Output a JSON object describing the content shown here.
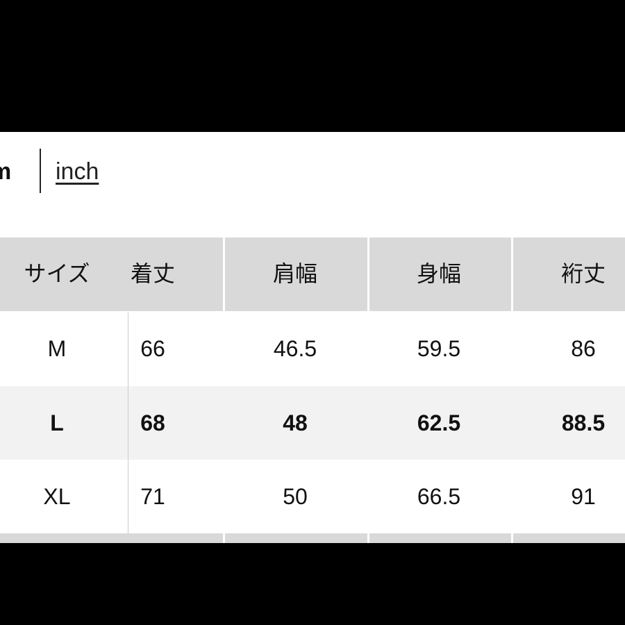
{
  "units": {
    "cm_label": "m",
    "inch_label": "inch"
  },
  "table": {
    "headers": [
      "サイズ",
      "着丈",
      "肩幅",
      "身幅",
      "裄丈"
    ],
    "rows": [
      {
        "size": "M",
        "values": [
          "66",
          "46.5",
          "59.5",
          "86"
        ],
        "highlighted": false
      },
      {
        "size": "L",
        "values": [
          "68",
          "48",
          "62.5",
          "88.5"
        ],
        "highlighted": true
      },
      {
        "size": "XL",
        "values": [
          "71",
          "50",
          "66.5",
          "91"
        ],
        "highlighted": false
      }
    ]
  },
  "colors": {
    "header_bg": "#d9d9d9",
    "highlight_row_bg": "#f2f2f2"
  }
}
